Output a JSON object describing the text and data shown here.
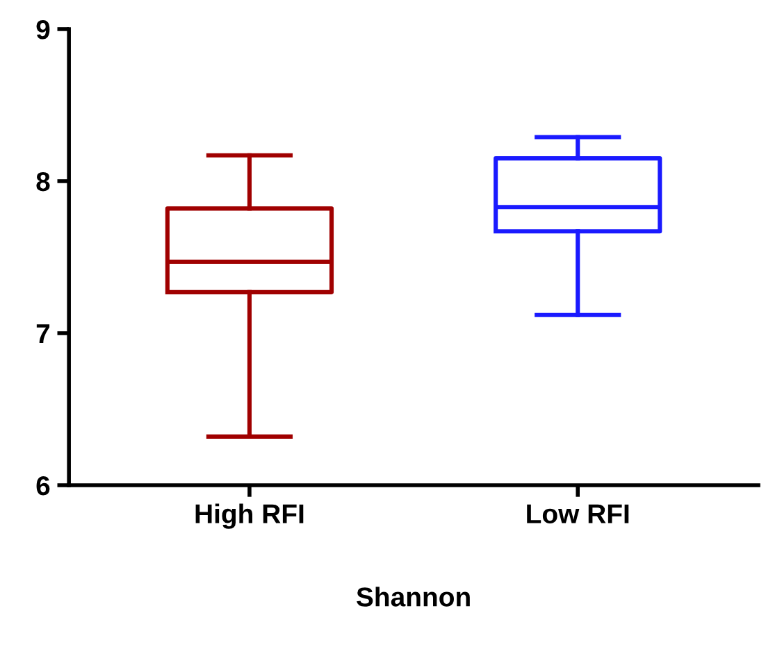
{
  "chart_data": {
    "type": "box",
    "xlabel": "Shannon",
    "categories": [
      "High RFI",
      "Low RFI"
    ],
    "boxes": [
      {
        "low": 6.32,
        "q1": 7.27,
        "median": 7.47,
        "q3": 7.82,
        "high": 8.17
      },
      {
        "low": 7.12,
        "q1": 7.67,
        "median": 7.83,
        "q3": 8.15,
        "high": 8.29
      }
    ],
    "colors": [
      "#a00000",
      "#1a1aff"
    ],
    "ylim": [
      6,
      9
    ],
    "yticks": [
      6,
      7,
      8,
      9
    ],
    "grid": false
  }
}
